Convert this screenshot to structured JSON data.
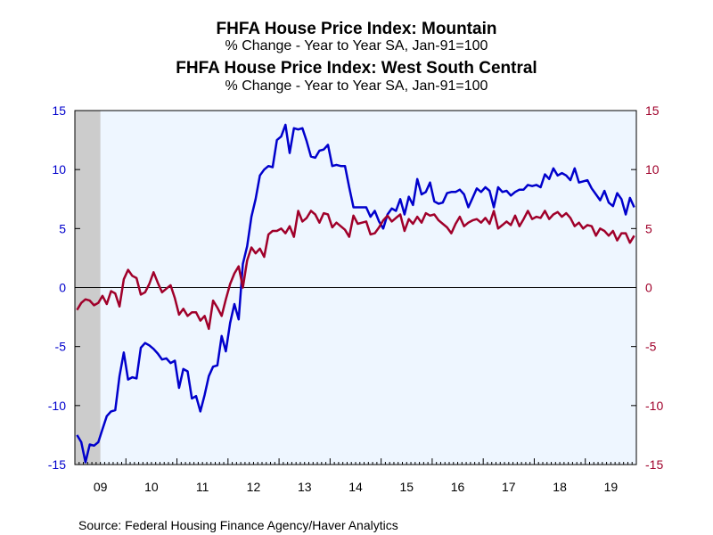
{
  "titles": [
    {
      "main": "FHFA House Price Index: Mountain",
      "sub": "% Change - Year to Year    SA, Jan-91=100",
      "color": "#0000cc"
    },
    {
      "main": "FHFA House Price Index: West South Central",
      "sub": "% Change - Year to Year    SA, Jan-91=100",
      "color": "#a0002a"
    }
  ],
  "source": "Source:  Federal Housing Finance Agency/Haver Analytics",
  "colors": {
    "plot_background": "#eef6ff",
    "recession_shade": "#cccccc",
    "left_axis": "#0000cc",
    "right_axis": "#a0002a",
    "mountain": "#0000cc",
    "west_south_central": "#a0002a"
  },
  "chart_data": {
    "type": "line",
    "frequency": "monthly",
    "x_start": "2009-01",
    "x_end": "2019-12",
    "x_tick_labels": [
      "09",
      "10",
      "11",
      "12",
      "13",
      "14",
      "15",
      "16",
      "17",
      "18",
      "19"
    ],
    "ylim": [
      -15,
      15
    ],
    "y_ticks": [
      -15,
      -10,
      -5,
      0,
      5,
      10,
      15
    ],
    "y_tick_labels": [
      "-15",
      "-10",
      "-5",
      "0",
      "5",
      "10",
      "15"
    ],
    "dual_axis": true,
    "grid": false,
    "zero_line": true,
    "recession_shading": {
      "from": "2009-01",
      "to": "2009-06"
    },
    "series": [
      {
        "name": "FHFA House Price Index: Mountain",
        "axis": "left",
        "values": [
          -12.5,
          -13.1,
          -14.8,
          -13.3,
          -13.4,
          -13.1,
          -12.0,
          -10.9,
          -10.5,
          -10.4,
          -7.5,
          -5.5,
          -7.8,
          -7.6,
          -7.7,
          -5.1,
          -4.7,
          -4.9,
          -5.2,
          -5.6,
          -6.1,
          -6.0,
          -6.4,
          -6.2,
          -8.5,
          -6.9,
          -7.1,
          -9.4,
          -9.2,
          -10.5,
          -9.1,
          -7.5,
          -6.7,
          -6.6,
          -4.1,
          -5.4,
          -3.0,
          -1.4,
          -2.7,
          2.0,
          3.5,
          6.0,
          7.5,
          9.5,
          10.0,
          10.3,
          10.2,
          12.5,
          12.8,
          13.8,
          11.4,
          13.5,
          13.4,
          13.5,
          12.4,
          11.1,
          11.0,
          11.6,
          11.7,
          12.1,
          10.3,
          10.4,
          10.3,
          10.3,
          8.5,
          6.8,
          6.8,
          6.8,
          6.8,
          6.0,
          6.5,
          5.6,
          5.0,
          6.2,
          6.7,
          6.5,
          7.5,
          6.2,
          7.7,
          7.0,
          9.2,
          7.9,
          8.1,
          8.9,
          7.3,
          7.1,
          7.2,
          8.0,
          8.1,
          8.1,
          8.3,
          7.9,
          6.8,
          7.6,
          8.4,
          8.1,
          8.5,
          8.2,
          6.8,
          8.5,
          8.1,
          8.2,
          7.8,
          8.1,
          8.3,
          8.3,
          8.7,
          8.6,
          8.7,
          8.5,
          9.6,
          9.2,
          10.1,
          9.5,
          9.7,
          9.5,
          9.1,
          10.1,
          8.9,
          9.0,
          9.1,
          8.4,
          7.9,
          7.4,
          8.2,
          7.2,
          6.9,
          8.0,
          7.5,
          6.2,
          7.6,
          6.8
        ]
      },
      {
        "name": "FHFA House Price Index: West South Central",
        "axis": "right",
        "values": [
          -1.9,
          -1.3,
          -1.0,
          -1.1,
          -1.5,
          -1.3,
          -0.7,
          -1.4,
          -0.3,
          -0.5,
          -1.6,
          0.7,
          1.5,
          1.0,
          0.8,
          -0.6,
          -0.4,
          0.3,
          1.3,
          0.4,
          -0.4,
          -0.1,
          0.2,
          -0.9,
          -2.3,
          -1.8,
          -2.4,
          -2.1,
          -2.1,
          -2.8,
          -2.4,
          -3.5,
          -1.1,
          -1.7,
          -2.4,
          -1.0,
          0.3,
          1.2,
          1.8,
          0.0,
          2.3,
          3.4,
          2.9,
          3.3,
          2.6,
          4.5,
          4.8,
          4.8,
          5.0,
          4.6,
          5.2,
          4.3,
          6.5,
          5.6,
          5.9,
          6.5,
          6.2,
          5.5,
          6.3,
          6.2,
          5.1,
          5.5,
          5.2,
          4.9,
          4.3,
          6.1,
          5.4,
          5.5,
          5.6,
          4.5,
          4.6,
          5.1,
          5.7,
          6.1,
          5.6,
          5.9,
          6.2,
          4.8,
          5.8,
          5.4,
          6.0,
          5.5,
          6.3,
          6.1,
          6.2,
          5.7,
          5.4,
          5.1,
          4.6,
          5.4,
          6.0,
          5.2,
          5.5,
          5.7,
          5.8,
          5.5,
          5.9,
          5.4,
          6.5,
          5.0,
          5.3,
          5.6,
          5.3,
          6.1,
          5.2,
          5.8,
          6.5,
          5.8,
          6.0,
          5.9,
          6.5,
          5.8,
          6.2,
          6.4,
          6.0,
          6.3,
          5.9,
          5.2,
          5.5,
          5.0,
          5.3,
          5.2,
          4.4,
          5.0,
          4.8,
          4.4,
          4.8,
          4.0,
          4.6,
          4.6,
          3.8,
          4.4
        ]
      }
    ]
  }
}
